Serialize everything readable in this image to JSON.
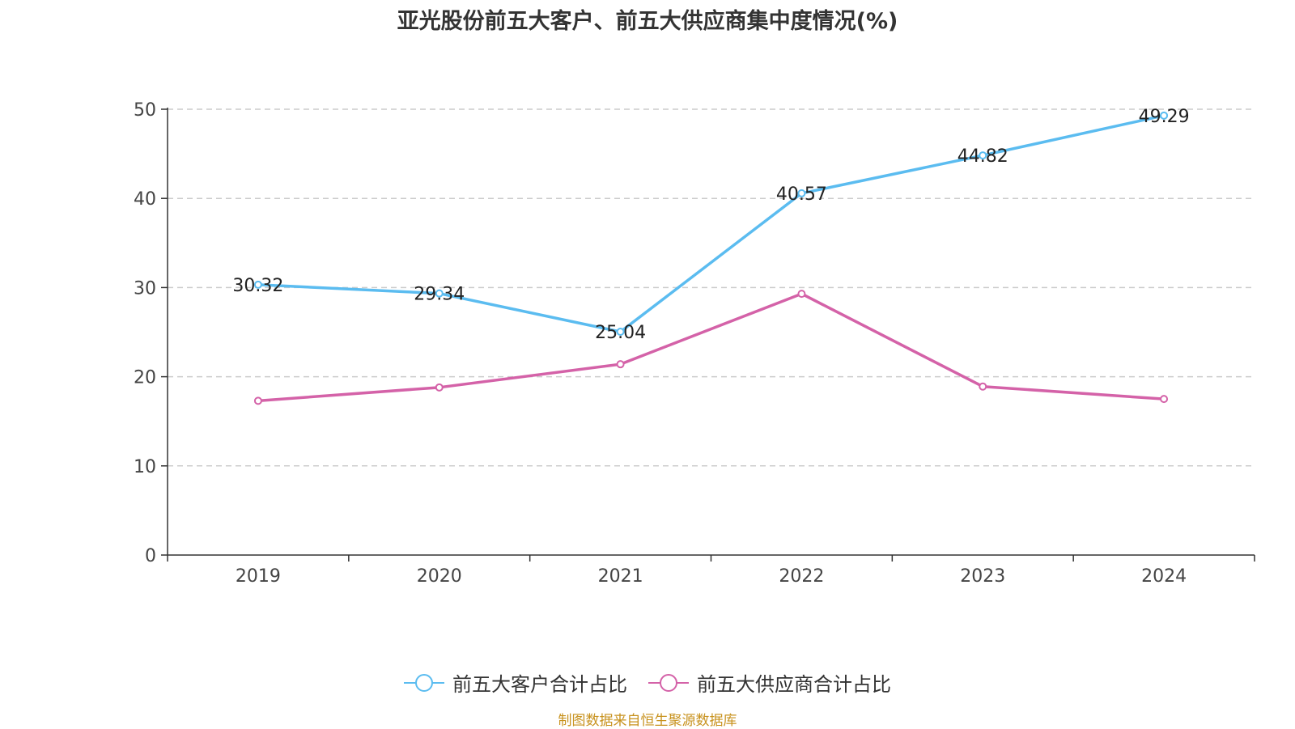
{
  "chart_data": {
    "type": "line",
    "title": "亚光股份前五大客户、前五大供应商集中度情况(%)",
    "categories": [
      "2019",
      "2020",
      "2021",
      "2022",
      "2023",
      "2024"
    ],
    "ylim": [
      0,
      50
    ],
    "yticks": [
      0,
      10,
      20,
      30,
      40,
      50
    ],
    "grid": "horizontal-dashed",
    "legend_position": "bottom-center",
    "series": [
      {
        "name": "前五大客户合计占比",
        "color": "#5bbcf0",
        "values": [
          30.32,
          29.34,
          25.04,
          40.57,
          44.82,
          49.29
        ],
        "labels": [
          "30.32",
          "29.34",
          "25.04",
          "40.57",
          "44.82",
          "49.29"
        ]
      },
      {
        "name": "前五大供应商合计占比",
        "color": "#d462a8",
        "values": [
          17.3,
          18.8,
          21.4,
          29.3,
          18.9,
          17.5
        ],
        "labels": []
      }
    ]
  },
  "source": "制图数据来自恒生聚源数据库"
}
